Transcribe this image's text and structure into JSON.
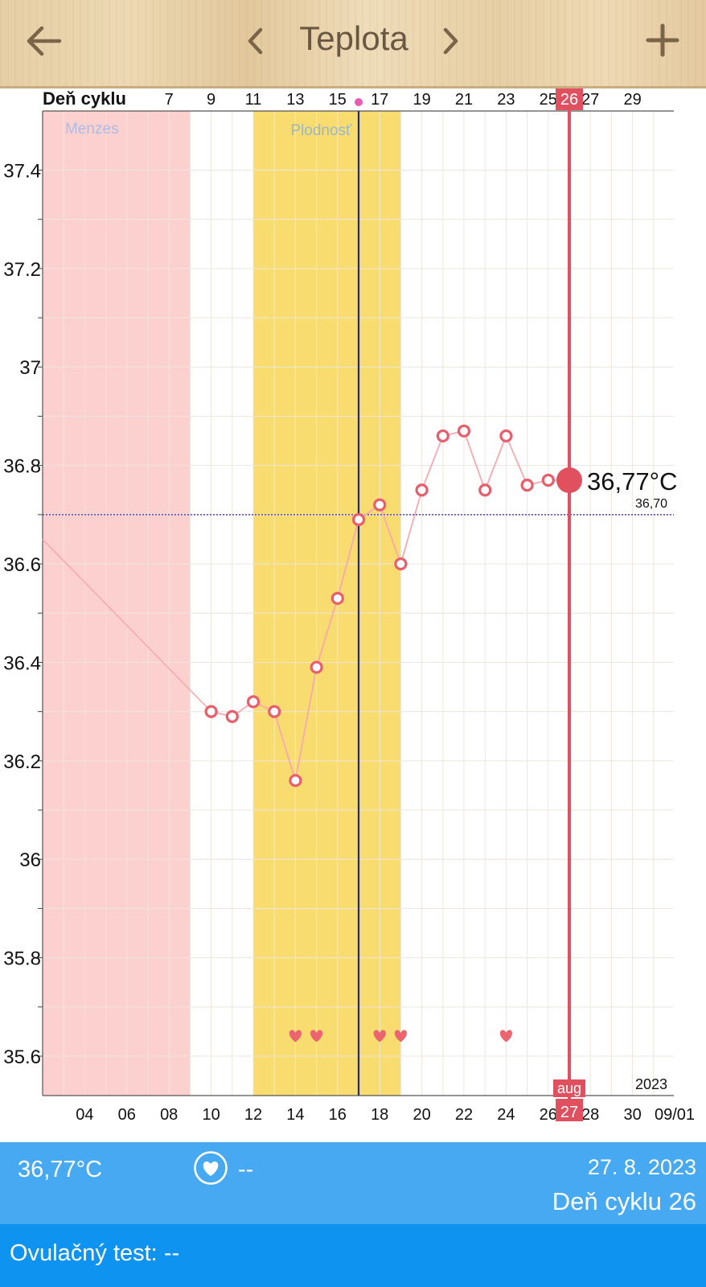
{
  "header": {
    "title": "Teplota",
    "back_icon": "arrow-left-icon",
    "prev_icon": "chevron-left-icon",
    "next_icon": "chevron-right-icon",
    "add_icon": "plus-icon"
  },
  "chart_data": {
    "type": "line",
    "cycle_axis_label": "Deň cyklu",
    "cycle_ticks": [
      "7",
      "9",
      "11",
      "13",
      "15",
      "17",
      "19",
      "21",
      "23",
      "25",
      "27",
      "29"
    ],
    "current_cycle_day": "26",
    "date_ticks": [
      "04",
      "06",
      "08",
      "10",
      "12",
      "14",
      "16",
      "18",
      "20",
      "22",
      "24",
      "26",
      "28",
      "30",
      "09/01"
    ],
    "current_date_day": "27",
    "current_month": "aug",
    "year": "2023",
    "y_ticks": [
      "37.4",
      "37.2",
      "37",
      "36.8",
      "36.6",
      "36.4",
      "36.2",
      "36",
      "35.8",
      "35.6"
    ],
    "ylim": [
      35.52,
      37.52
    ],
    "x_dates": [
      10,
      11,
      12,
      13,
      14,
      15,
      16,
      17,
      18,
      19,
      20,
      21,
      22,
      23,
      24,
      25,
      26,
      27
    ],
    "values": [
      36.3,
      36.29,
      36.32,
      36.3,
      36.16,
      36.39,
      36.53,
      36.69,
      36.72,
      36.6,
      36.75,
      36.86,
      36.87,
      36.75,
      36.86,
      36.76,
      36.77,
      36.77
    ],
    "leading_line_start": {
      "x": 2,
      "y": 36.65
    },
    "coverline": {
      "value": 36.7,
      "label": "36,70"
    },
    "current_value_label": "36,77°C",
    "bands": [
      {
        "name": "Menzes",
        "from": 2,
        "to": 8,
        "color": "#fdd0d0"
      },
      {
        "name": "Plodnosť",
        "from": 12,
        "to": 18,
        "color": "#f9dc70"
      }
    ],
    "ovulation_day_date": 17,
    "intercourse_dates": [
      14,
      15,
      18,
      19,
      24
    ],
    "colors": {
      "line": "#f6a9ae",
      "marker": "#e85f6b",
      "current": "#e0505e",
      "ovulation": "#1b2b8c",
      "coverline": "#5a4fd0"
    },
    "grid": true
  },
  "bottom": {
    "temperature": "36,77°C",
    "heart_icon": "heart-circle-icon",
    "intercourse_value": "--",
    "date": "27. 8. 2023",
    "cycle_day": "Deň cyklu 26",
    "ovulation_test": "Ovulačný test: --"
  }
}
